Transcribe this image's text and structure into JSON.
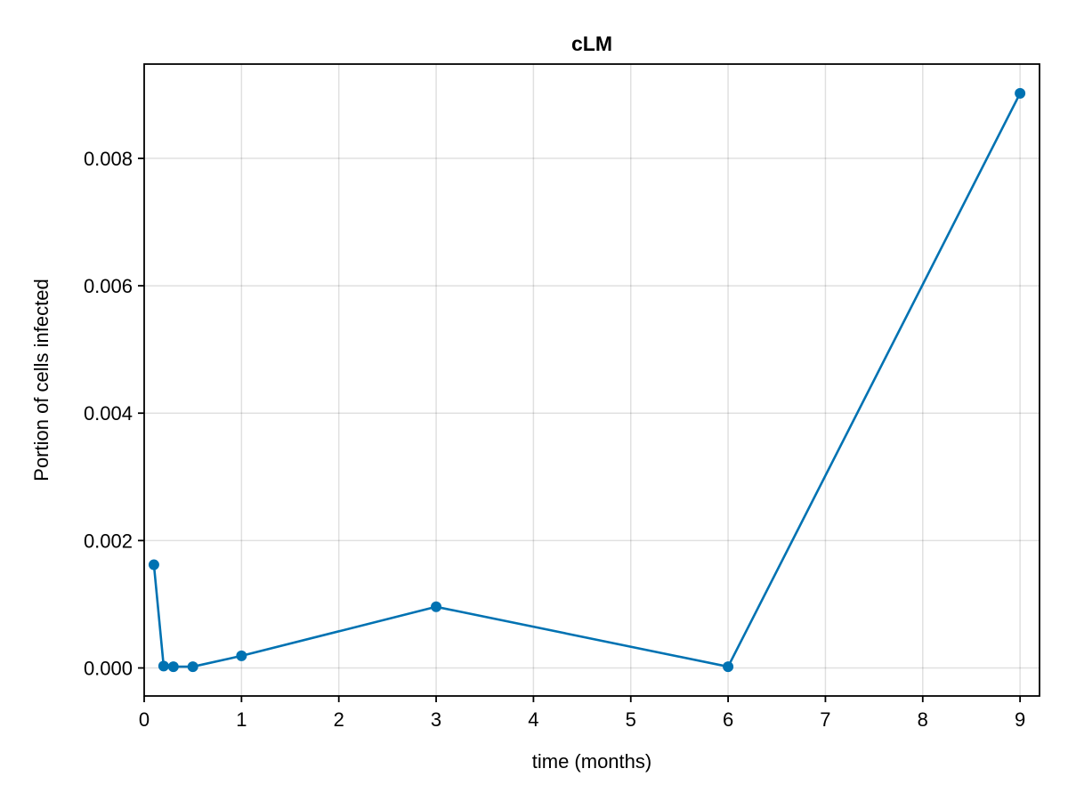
{
  "chart_data": {
    "type": "line",
    "title": "cLM",
    "xlabel": "time (months)",
    "ylabel": "Portion of cells infected",
    "xlim": [
      0,
      9.2
    ],
    "ylim": [
      -0.00044,
      0.00948
    ],
    "xticks": [
      0,
      1,
      2,
      3,
      4,
      5,
      6,
      7,
      8,
      9
    ],
    "xtick_labels": [
      "0",
      "1",
      "2",
      "3",
      "4",
      "5",
      "6",
      "7",
      "8",
      "9"
    ],
    "yticks": [
      0,
      0.002,
      0.004,
      0.006,
      0.008
    ],
    "ytick_labels": [
      "0.000",
      "0.002",
      "0.004",
      "0.006",
      "0.008"
    ],
    "grid": true,
    "legend": "none",
    "series": [
      {
        "color": "#0072b2",
        "markers": true,
        "x": [
          0.1,
          0.2,
          0.3,
          0.5,
          1,
          3,
          6,
          9
        ],
        "y": [
          0.00162,
          3e-05,
          2e-05,
          2e-05,
          0.00019,
          0.00096,
          2e-05,
          0.00902
        ]
      }
    ]
  }
}
